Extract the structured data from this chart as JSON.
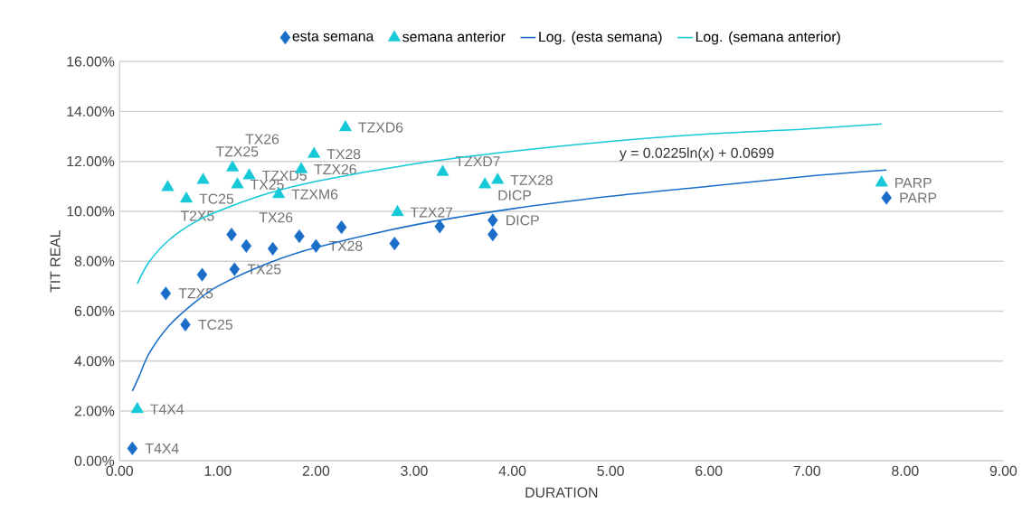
{
  "chart_data": {
    "type": "scatter",
    "xlabel": "DURATION",
    "ylabel": "TIT REAL",
    "xlim": [
      0,
      9
    ],
    "ylim": [
      0,
      16
    ],
    "xticks": [
      {
        "value": 0,
        "label": "0.00"
      },
      {
        "value": 1,
        "label": "1.00"
      },
      {
        "value": 2,
        "label": "2.00"
      },
      {
        "value": 3,
        "label": "3.00"
      },
      {
        "value": 4,
        "label": "4.00"
      },
      {
        "value": 5,
        "label": "5.00"
      },
      {
        "value": 6,
        "label": "6.00"
      },
      {
        "value": 7,
        "label": "7.00"
      },
      {
        "value": 8,
        "label": "8.00"
      },
      {
        "value": 9,
        "label": "9.00"
      }
    ],
    "yticks": [
      {
        "value": 0,
        "label": "0.00%"
      },
      {
        "value": 2,
        "label": "2.00%"
      },
      {
        "value": 4,
        "label": "4.00%"
      },
      {
        "value": 6,
        "label": "6.00%"
      },
      {
        "value": 8,
        "label": "8.00%"
      },
      {
        "value": 10,
        "label": "10.00%"
      },
      {
        "value": 12,
        "label": "12.00%"
      },
      {
        "value": 14,
        "label": "14.00%"
      },
      {
        "value": 16,
        "label": "16.00%"
      }
    ],
    "grid": "y",
    "legend": "top",
    "annotations": [
      "y = 0.0225ln(x) + 0.0699"
    ],
    "series": [
      {
        "name": "esta semana",
        "marker": "diamond",
        "color": "#1a6ec8",
        "x": [
          0.13,
          0.47,
          0.67,
          0.84,
          1.14,
          1.17,
          1.29,
          1.56,
          1.83,
          2.0,
          2.26,
          2.8,
          3.26,
          3.8,
          3.8,
          7.81
        ],
        "values": [
          0.5,
          6.71,
          5.46,
          7.46,
          9.07,
          7.68,
          8.61,
          8.5,
          9.0,
          8.61,
          9.36,
          8.71,
          9.39,
          9.64,
          9.07,
          10.54
        ],
        "value_labels": [
          "T4X4",
          "TZX5",
          "TC25",
          null,
          null,
          "TX25",
          "TX26",
          null,
          null,
          "TX28",
          null,
          null,
          null,
          "DICP",
          null,
          "PARP"
        ]
      },
      {
        "name": "semana anterior",
        "marker": "triangle",
        "color": "#17c8d8",
        "x": [
          0.18,
          0.49,
          0.68,
          0.85,
          1.15,
          1.2,
          1.32,
          1.62,
          1.85,
          1.98,
          2.3,
          2.83,
          3.29,
          3.72,
          3.85,
          7.76
        ],
        "values": [
          2.07,
          10.96,
          10.5,
          11.25,
          11.75,
          11.07,
          11.43,
          10.68,
          11.68,
          12.29,
          13.36,
          9.96,
          11.57,
          11.07,
          11.25,
          11.14
        ],
        "value_labels": [
          "T4X4",
          "T2X5",
          "TC25",
          "TZX25",
          "TX26",
          "TX25",
          "TZXD5",
          "TZXM6",
          "TZX26",
          "TX28",
          "TZXD6",
          "TZX27",
          "TZXD7",
          "DICP",
          "TZX28",
          "PARP"
        ]
      },
      {
        "name": "Log. (esta semana)",
        "type": "line",
        "marker": "none",
        "color": "#1a6ec8",
        "x": [
          0.13,
          0.2,
          0.3,
          0.5,
          0.75,
          1.0,
          1.5,
          2.0,
          3.0,
          4.0,
          5.0,
          6.0,
          7.0,
          7.81
        ],
        "values": [
          2.8,
          3.4,
          4.3,
          5.4,
          6.3,
          7.0,
          7.9,
          8.55,
          9.45,
          10.1,
          10.6,
          11.0,
          11.4,
          11.65
        ]
      },
      {
        "name": "Log. (semana anterior)",
        "type": "line",
        "marker": "none",
        "color": "#17c8d8",
        "x": [
          0.18,
          0.3,
          0.5,
          0.75,
          1.0,
          1.5,
          2.0,
          3.0,
          4.0,
          5.0,
          6.0,
          7.0,
          7.76
        ],
        "values": [
          7.1,
          7.97,
          8.84,
          9.53,
          10.0,
          10.7,
          11.2,
          11.9,
          12.4,
          12.8,
          13.1,
          13.3,
          13.5
        ]
      }
    ]
  }
}
